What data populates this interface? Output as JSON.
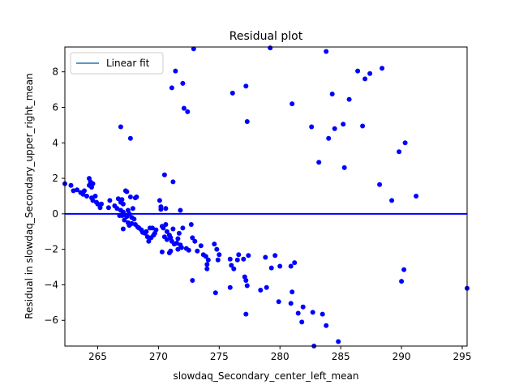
{
  "chart_data": {
    "type": "scatter",
    "title": "Residual plot",
    "xlabel": "slowdaq_Secondary_center_left_mean",
    "ylabel": "Residual in slowdaq_Secondary_upper_right_mean",
    "xlim": [
      262.3,
      295.4
    ],
    "ylim": [
      -7.45,
      9.4
    ],
    "xticks": [
      265,
      270,
      275,
      280,
      285,
      290,
      295
    ],
    "yticks": [
      -6,
      -4,
      -2,
      0,
      2,
      4,
      6,
      8
    ],
    "legend": {
      "position": "top-left",
      "entries": [
        "Linear fit"
      ]
    },
    "fit_line": {
      "name": "Linear fit",
      "y": 0,
      "color": "#0000ff"
    },
    "point_color": "#0000ff",
    "legend_line_color": "#1f77b4",
    "points": [
      [
        262.3,
        1.7
      ],
      [
        262.8,
        1.6
      ],
      [
        263.0,
        1.3
      ],
      [
        263.3,
        1.35
      ],
      [
        263.6,
        1.2
      ],
      [
        263.8,
        1.1
      ],
      [
        263.9,
        1.3
      ],
      [
        264.1,
        1.0
      ],
      [
        264.3,
        2.0
      ],
      [
        264.3,
        1.6
      ],
      [
        264.4,
        1.8
      ],
      [
        264.5,
        1.5
      ],
      [
        264.6,
        1.7
      ],
      [
        264.5,
        0.9
      ],
      [
        264.6,
        0.75
      ],
      [
        264.8,
        1.0
      ],
      [
        264.9,
        0.65
      ],
      [
        265.0,
        0.55
      ],
      [
        265.2,
        0.35
      ],
      [
        265.3,
        0.55
      ],
      [
        265.9,
        0.35
      ],
      [
        266.0,
        0.75
      ],
      [
        266.4,
        0.45
      ],
      [
        266.6,
        0.3
      ],
      [
        266.7,
        0.85
      ],
      [
        266.9,
        0.65
      ],
      [
        266.9,
        0.2
      ],
      [
        267.0,
        0.8
      ],
      [
        267.1,
        0.55
      ],
      [
        267.1,
        0.1
      ],
      [
        267.0,
        -0.1
      ],
      [
        267.2,
        -0.05
      ],
      [
        267.3,
        1.3
      ],
      [
        267.4,
        1.25
      ],
      [
        267.4,
        -0.15
      ],
      [
        267.5,
        0.2
      ],
      [
        267.6,
        0.0
      ],
      [
        267.7,
        0.95
      ],
      [
        267.8,
        -0.2
      ],
      [
        268.1,
        0.9
      ],
      [
        268.2,
        0.95
      ],
      [
        268.0,
        -0.3
      ],
      [
        267.9,
        0.3
      ],
      [
        268.1,
        -0.6
      ],
      [
        267.5,
        -0.5
      ],
      [
        267.6,
        -0.65
      ],
      [
        267.2,
        -0.35
      ],
      [
        267.8,
        -0.55
      ],
      [
        266.8,
        -0.1
      ],
      [
        267.1,
        -0.85
      ],
      [
        268.3,
        -0.75
      ],
      [
        268.4,
        -0.8
      ],
      [
        268.6,
        -0.9
      ],
      [
        268.7,
        -1.05
      ],
      [
        268.9,
        -1.1
      ],
      [
        269.0,
        -1.0
      ],
      [
        269.1,
        -1.3
      ],
      [
        269.3,
        -0.8
      ],
      [
        269.5,
        -0.8
      ],
      [
        269.2,
        -1.55
      ],
      [
        269.4,
        -1.35
      ],
      [
        269.6,
        -1.2
      ],
      [
        269.7,
        -1.1
      ],
      [
        269.8,
        -0.9
      ],
      [
        270.1,
        0.75
      ],
      [
        270.2,
        0.4
      ],
      [
        270.2,
        0.25
      ],
      [
        270.6,
        0.3
      ],
      [
        270.3,
        -0.7
      ],
      [
        270.4,
        -0.8
      ],
      [
        270.6,
        -0.6
      ],
      [
        270.7,
        -1.0
      ],
      [
        270.5,
        -1.3
      ],
      [
        270.7,
        -1.45
      ],
      [
        270.9,
        -1.2
      ],
      [
        271.0,
        -1.35
      ],
      [
        271.1,
        -1.55
      ],
      [
        271.2,
        -0.85
      ],
      [
        271.3,
        -1.7
      ],
      [
        271.5,
        -1.65
      ],
      [
        271.6,
        -1.4
      ],
      [
        271.7,
        -1.1
      ],
      [
        271.8,
        -1.75
      ],
      [
        271.9,
        -1.9
      ],
      [
        272.0,
        -0.8
      ],
      [
        272.3,
        -1.95
      ],
      [
        272.5,
        -2.05
      ],
      [
        272.7,
        -0.6
      ],
      [
        272.8,
        -1.35
      ],
      [
        273.0,
        -1.55
      ],
      [
        273.2,
        -2.1
      ],
      [
        273.5,
        -1.8
      ],
      [
        273.7,
        -2.3
      ],
      [
        273.9,
        -2.4
      ],
      [
        274.1,
        -2.6
      ],
      [
        274.6,
        -1.7
      ],
      [
        274.8,
        -2.0
      ],
      [
        275.0,
        -2.3
      ],
      [
        274.9,
        -2.6
      ],
      [
        274.0,
        -2.85
      ],
      [
        274.0,
        -3.1
      ],
      [
        272.8,
        -3.75
      ],
      [
        274.7,
        -4.45
      ],
      [
        271.0,
        -2.1
      ],
      [
        270.3,
        -2.15
      ],
      [
        270.5,
        2.2
      ],
      [
        271.2,
        1.8
      ],
      [
        271.8,
        0.2
      ],
      [
        270.9,
        -2.2
      ],
      [
        271.6,
        -2.0
      ],
      [
        275.9,
        -2.55
      ],
      [
        276.0,
        -2.9
      ],
      [
        276.5,
        -2.6
      ],
      [
        276.6,
        -2.3
      ],
      [
        277.0,
        -2.55
      ],
      [
        276.2,
        -3.1
      ],
      [
        275.9,
        -4.15
      ],
      [
        277.1,
        -3.55
      ],
      [
        277.2,
        -3.75
      ],
      [
        277.3,
        -4.05
      ],
      [
        277.4,
        -2.35
      ],
      [
        278.4,
        -4.3
      ],
      [
        278.8,
        -2.45
      ],
      [
        278.9,
        -4.15
      ],
      [
        279.3,
        -3.05
      ],
      [
        279.6,
        -2.35
      ],
      [
        280.0,
        -2.95
      ],
      [
        279.9,
        -4.95
      ],
      [
        280.9,
        -2.95
      ],
      [
        280.9,
        -5.05
      ],
      [
        281.0,
        -4.4
      ],
      [
        281.2,
        -2.75
      ],
      [
        281.5,
        -5.6
      ],
      [
        281.9,
        -5.25
      ],
      [
        281.8,
        -6.1
      ],
      [
        283.5,
        -5.65
      ],
      [
        282.8,
        -7.45
      ],
      [
        283.8,
        -6.3
      ],
      [
        282.7,
        -5.55
      ],
      [
        284.8,
        -7.2
      ],
      [
        277.2,
        -5.65
      ],
      [
        276.1,
        6.8
      ],
      [
        277.2,
        7.2
      ],
      [
        277.3,
        5.2
      ],
      [
        271.1,
        7.1
      ],
      [
        271.4,
        8.05
      ],
      [
        272.0,
        7.35
      ],
      [
        272.1,
        5.95
      ],
      [
        272.4,
        5.75
      ],
      [
        266.9,
        4.9
      ],
      [
        267.7,
        4.25
      ],
      [
        272.9,
        9.3
      ],
      [
        279.2,
        9.35
      ],
      [
        283.8,
        9.15
      ],
      [
        281.0,
        6.2
      ],
      [
        284.3,
        6.75
      ],
      [
        285.7,
        6.45
      ],
      [
        286.4,
        8.05
      ],
      [
        287.0,
        7.6
      ],
      [
        287.4,
        7.9
      ],
      [
        288.4,
        8.2
      ],
      [
        282.6,
        4.9
      ],
      [
        283.2,
        2.9
      ],
      [
        284.0,
        4.25
      ],
      [
        284.5,
        4.8
      ],
      [
        285.2,
        5.05
      ],
      [
        285.3,
        2.6
      ],
      [
        286.8,
        4.95
      ],
      [
        288.2,
        1.65
      ],
      [
        289.2,
        0.75
      ],
      [
        289.8,
        3.5
      ],
      [
        290.3,
        4.0
      ],
      [
        291.2,
        1.0
      ],
      [
        290.0,
        -3.8
      ],
      [
        290.2,
        -3.15
      ],
      [
        295.4,
        -4.2
      ]
    ]
  }
}
